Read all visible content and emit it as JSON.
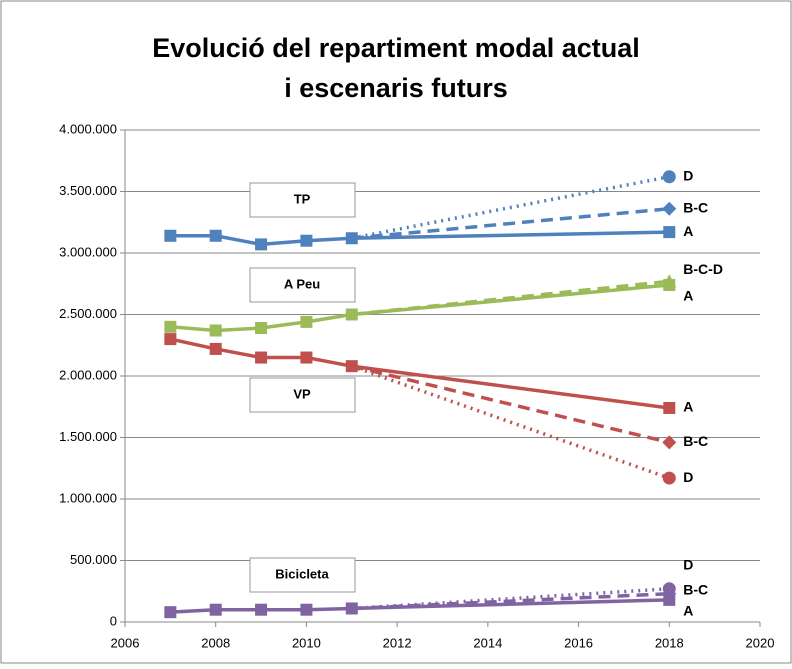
{
  "chart_data": {
    "type": "line",
    "title": [
      "Evolució del repartiment modal actual",
      "i escenaris futurs"
    ],
    "annotations": [
      "TP",
      "A Peu",
      "VP",
      "Bicicleta"
    ],
    "x": [
      2007,
      2008,
      2009,
      2010,
      2011,
      2018
    ],
    "xlim": [
      2006,
      2020
    ],
    "xticks": [
      2006,
      2008,
      2010,
      2012,
      2014,
      2016,
      2018,
      2020
    ],
    "ylim": [
      0,
      4000000
    ],
    "yticks": [
      0,
      {
        "value": 500000,
        "label": "500.000"
      },
      {
        "value": 1000000,
        "label": "1.000.000"
      },
      {
        "value": 1500000,
        "label": "1.500.000"
      },
      {
        "value": 2000000,
        "label": "2.000.000"
      },
      {
        "value": 2500000,
        "label": "2.500.000"
      },
      {
        "value": 3000000,
        "label": "3.000.000"
      },
      {
        "value": 3500000,
        "label": "3.500.000"
      },
      {
        "value": 4000000,
        "label": "4.000.000"
      }
    ],
    "grid": true,
    "series": [
      {
        "name": "A",
        "color": "#4f81bd",
        "marker": "square",
        "style": "solid",
        "values": [
          3140000,
          3140000,
          3070000,
          3100000,
          3120000,
          3170000
        ]
      },
      {
        "name": "B-C",
        "color": "#4f81bd",
        "marker": "diamond",
        "style": "dashed",
        "values": [
          null,
          null,
          null,
          null,
          3120000,
          3360000
        ]
      },
      {
        "name": "D",
        "color": "#4f81bd",
        "marker": "circle",
        "style": "dotted",
        "values": [
          null,
          null,
          null,
          null,
          3120000,
          3620000
        ]
      },
      {
        "name": "A",
        "color": "#9bbb59",
        "marker": "square",
        "style": "solid",
        "values": [
          2400000,
          2370000,
          2390000,
          2440000,
          2500000,
          2740000
        ]
      },
      {
        "name": "B-C-D",
        "color": "#9bbb59",
        "marker": "triangle",
        "style": "dashed",
        "values": [
          null,
          null,
          null,
          null,
          2500000,
          2770000
        ]
      },
      {
        "name": "A",
        "color": "#c0504d",
        "marker": "square",
        "style": "solid",
        "values": [
          2300000,
          2220000,
          2150000,
          2150000,
          2080000,
          1740000
        ]
      },
      {
        "name": "B-C",
        "color": "#c0504d",
        "marker": "diamond",
        "style": "dashed",
        "values": [
          null,
          null,
          null,
          null,
          2080000,
          1460000
        ]
      },
      {
        "name": "D",
        "color": "#c0504d",
        "marker": "circle",
        "style": "dotted",
        "values": [
          null,
          null,
          null,
          null,
          2080000,
          1170000
        ]
      },
      {
        "name": "A",
        "color": "#8064a2",
        "marker": "square",
        "style": "solid",
        "values": [
          80000,
          100000,
          100000,
          100000,
          110000,
          180000
        ]
      },
      {
        "name": "B-C",
        "color": "#8064a2",
        "marker": "diamond",
        "style": "dashed",
        "values": [
          null,
          null,
          null,
          null,
          110000,
          230000
        ]
      },
      {
        "name": "D",
        "color": "#8064a2",
        "marker": "circle",
        "style": "dotted",
        "values": [
          null,
          null,
          null,
          null,
          110000,
          270000
        ]
      }
    ]
  }
}
